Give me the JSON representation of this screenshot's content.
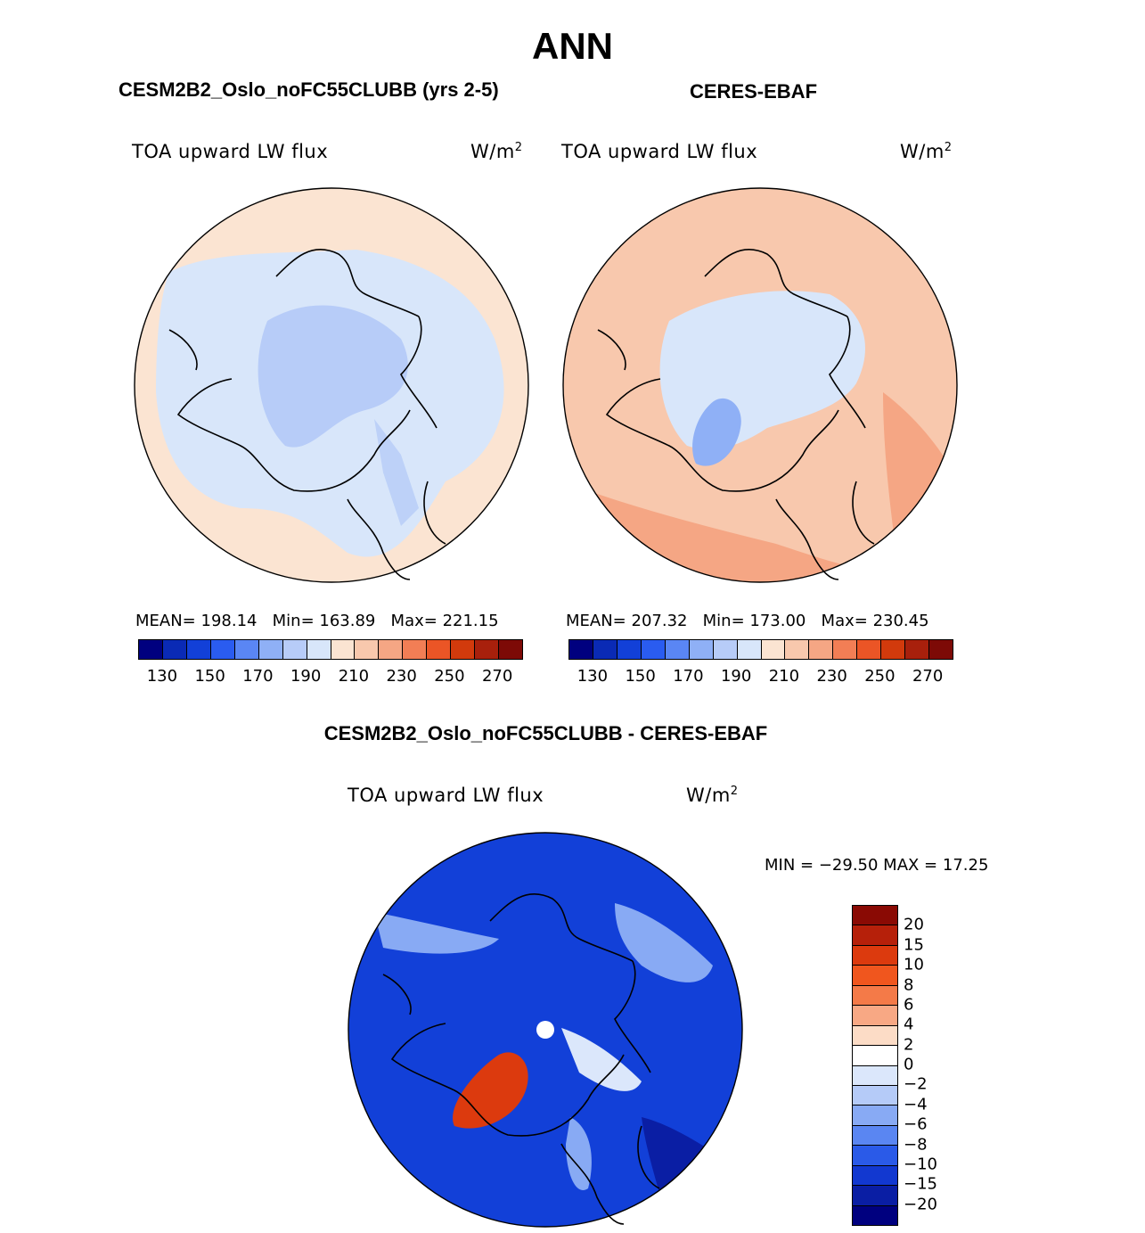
{
  "title": "ANN",
  "panels": [
    {
      "id": "model",
      "title": "CESM2B2_Oslo_noFC55CLUBB (yrs 2-5)",
      "variable": "TOA upward LW flux",
      "units_base": "W/m",
      "units_exp": "2",
      "stats": {
        "mean": "MEAN= 198.14",
        "min": "Min= 163.89",
        "max": "Max= 221.15"
      }
    },
    {
      "id": "obs",
      "title": "CERES-EBAF",
      "variable": "TOA upward LW flux",
      "units_base": "W/m",
      "units_exp": "2",
      "stats": {
        "mean": "MEAN= 207.32",
        "min": "Min= 173.00",
        "max": "Max= 230.45"
      }
    }
  ],
  "abs_colorbar": {
    "labels": [
      "130",
      "150",
      "170",
      "190",
      "210",
      "230",
      "250",
      "270"
    ],
    "colors": [
      "#00007f",
      "#0a2ab5",
      "#1240d8",
      "#2a5cf0",
      "#5a86f4",
      "#8fb0f6",
      "#b7ccf8",
      "#d8e6fa",
      "#fbe4d2",
      "#f8c8ad",
      "#f5a684",
      "#f27e55",
      "#eb5526",
      "#d23a0c",
      "#a8200c",
      "#7d0a06"
    ]
  },
  "diff_panel": {
    "title": "CESM2B2_Oslo_noFC55CLUBB - CERES-EBAF",
    "variable": "TOA upward LW flux",
    "units_base": "W/m",
    "units_exp": "2",
    "stats": "MIN = −29.50 MAX =  17.25"
  },
  "diff_colorbar": {
    "labels": [
      "20",
      "15",
      "10",
      "8",
      "6",
      "4",
      "2",
      "0",
      "−2",
      "−4",
      "−6",
      "−8",
      "−10",
      "−15",
      "−20"
    ],
    "colors": [
      "#8a0a04",
      "#b6200a",
      "#dc3a0e",
      "#f0561e",
      "#f47a48",
      "#f8a884",
      "#fcdcc6",
      "#ffffff",
      "#dbe7fb",
      "#b5cbf8",
      "#88aaf4",
      "#5a86f2",
      "#2a5ae8",
      "#1238d0",
      "#0a1ea4",
      "#00007f"
    ]
  },
  "colors": {
    "model_ocean": "#fbe4d2",
    "model_ice": "#d8e6fa",
    "model_core": "#b7ccf8",
    "obs_ocean": "#f8c8ad",
    "obs_warm": "#f5a684",
    "obs_ice": "#d8e6fa",
    "obs_greenland": "#8fb0f6",
    "diff_bg": "#1240d8",
    "diff_light": "#88aaf4",
    "diff_pale": "#dbe7fb",
    "diff_dark": "#0a1ea4",
    "diff_hot": "#dc3a0e"
  }
}
